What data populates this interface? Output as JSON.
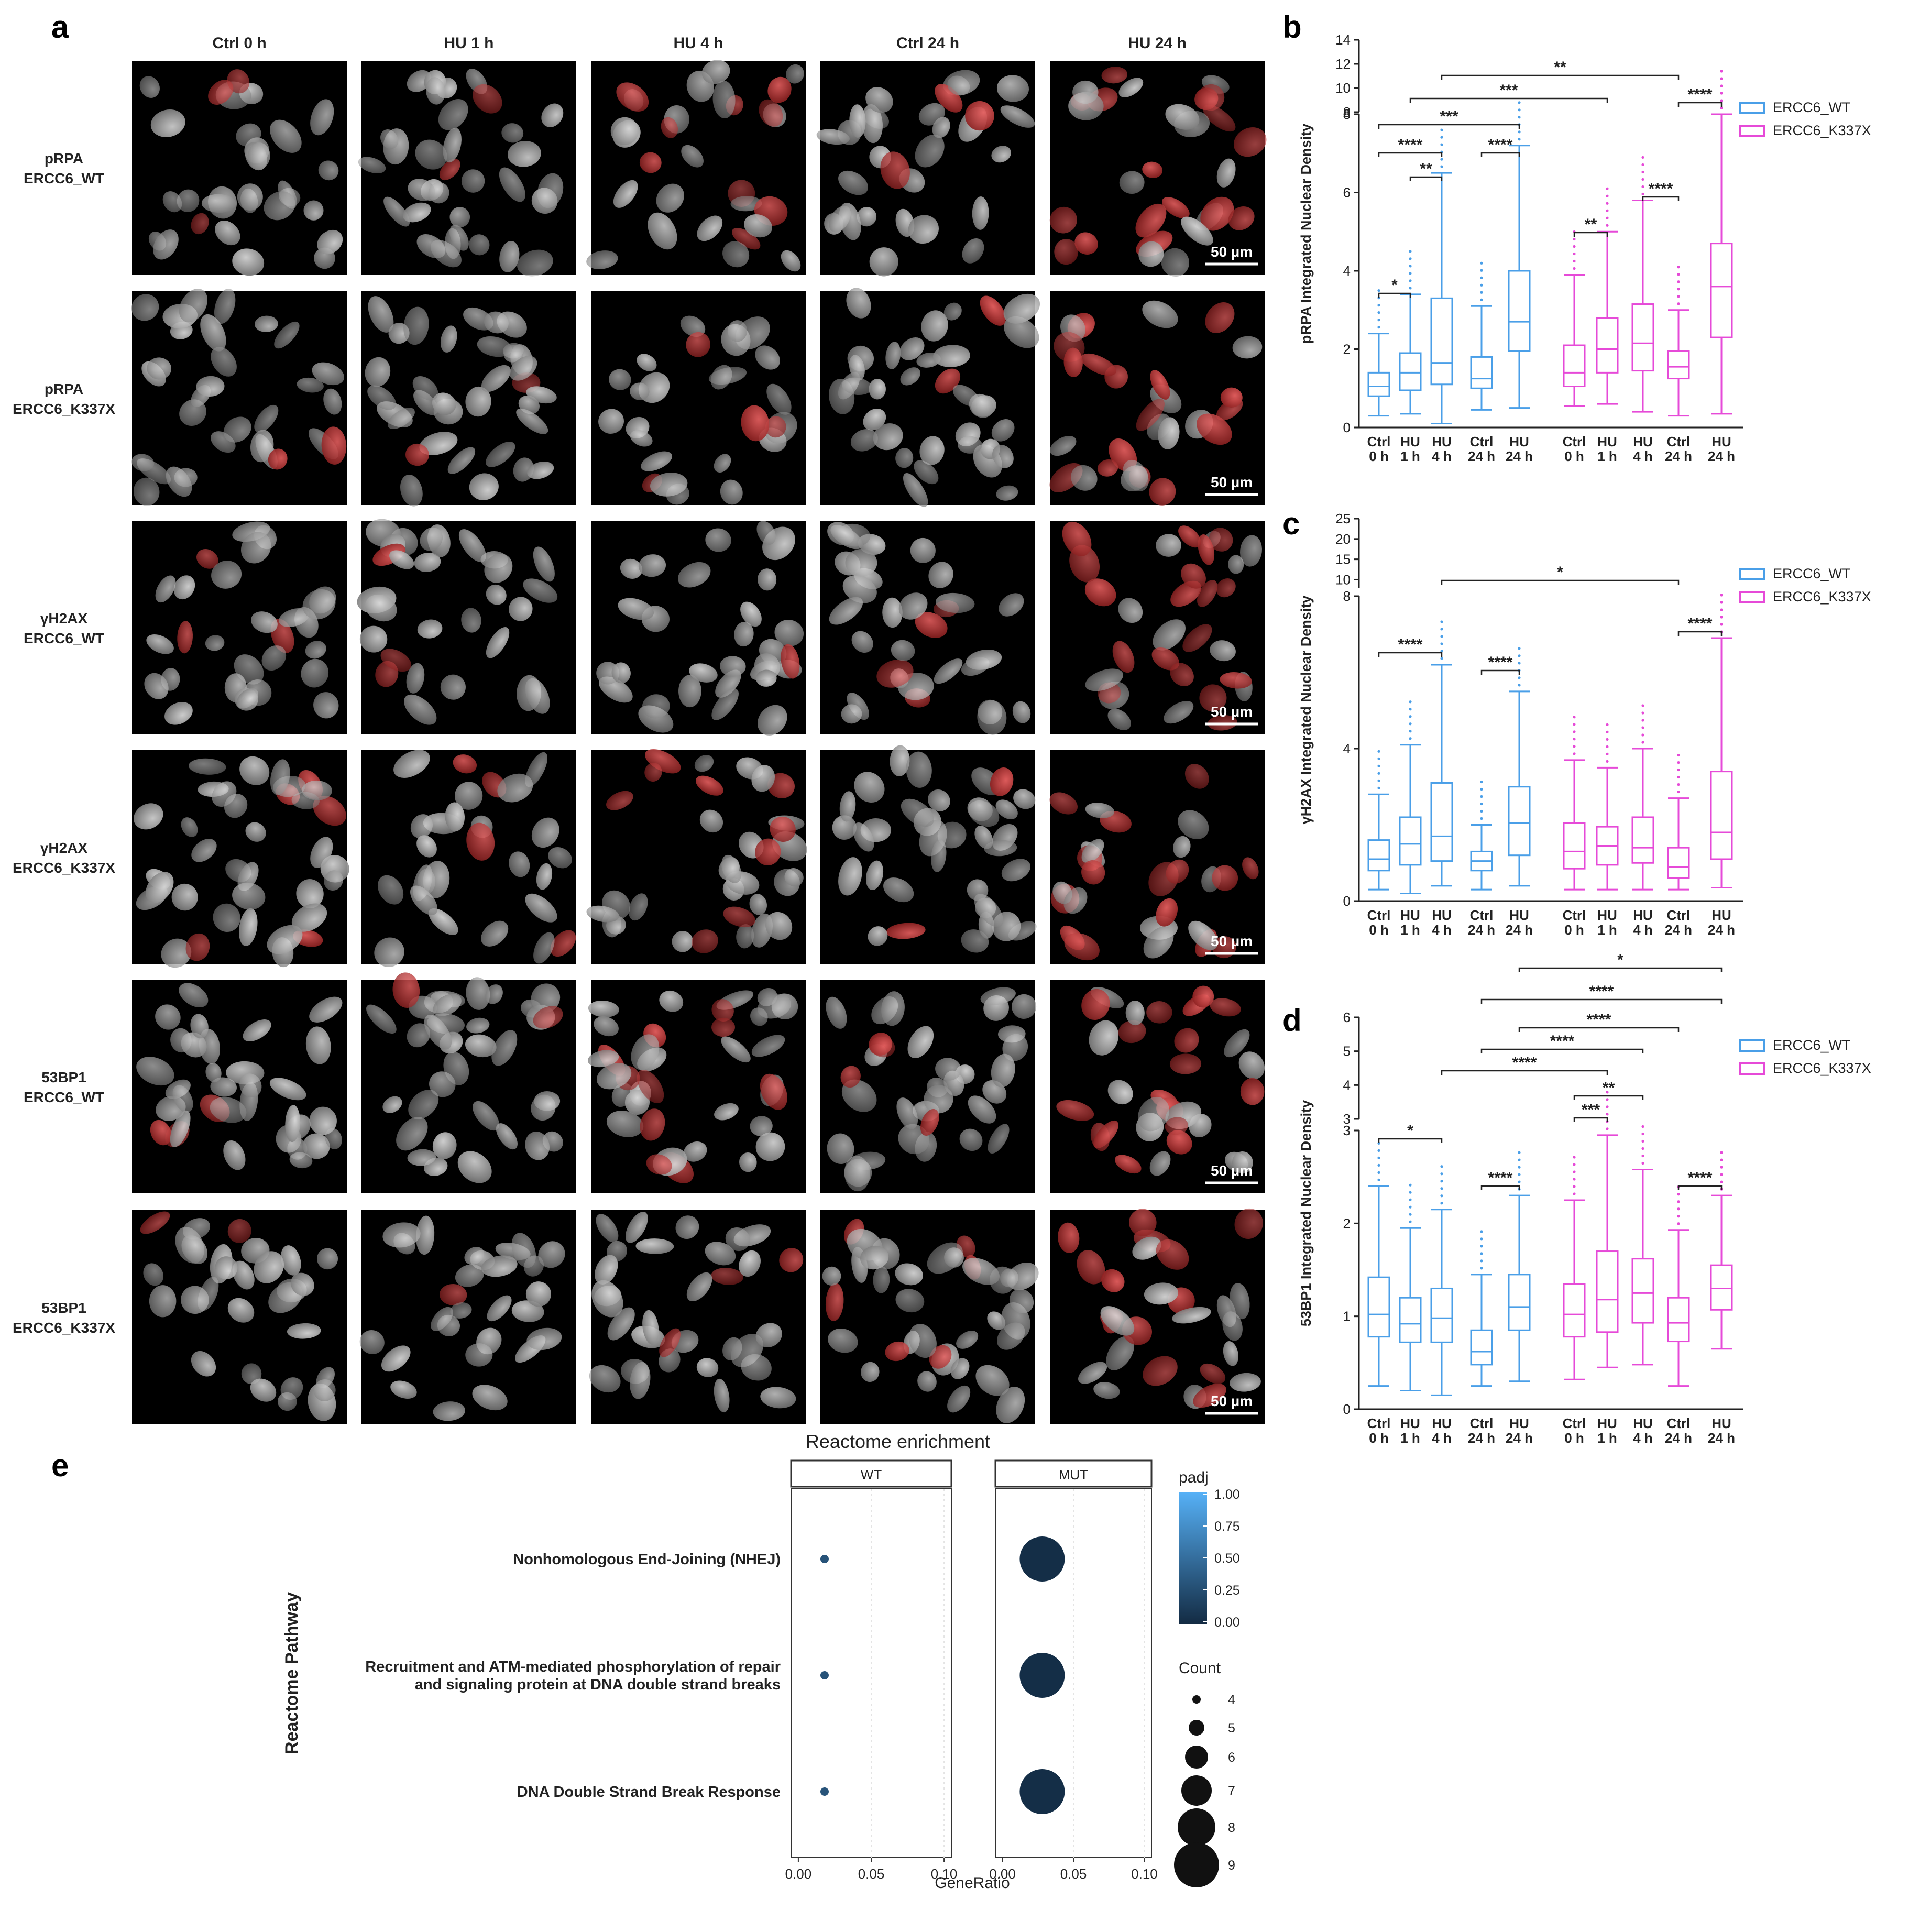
{
  "panel_letters": {
    "a": "a",
    "b": "b",
    "c": "c",
    "d": "d",
    "e": "e"
  },
  "microscopy": {
    "columns": [
      "Ctrl 0 h",
      "HU 1 h",
      "HU 4 h",
      "Ctrl 24 h",
      "HU 24 h"
    ],
    "rows": [
      {
        "marker": "pRPA",
        "genotype": "ERCC6_WT",
        "color": "#e23b3b"
      },
      {
        "marker": "pRPA",
        "genotype": "ERCC6_K337X",
        "color": "#e23b3b"
      },
      {
        "marker": "γH2AX",
        "genotype": "ERCC6_WT",
        "color": "#e23b3b"
      },
      {
        "marker": "γH2AX",
        "genotype": "ERCC6_K337X",
        "color": "#e23b3b"
      },
      {
        "marker": "53BP1",
        "genotype": "ERCC6_WT",
        "color": "#e23b3b"
      },
      {
        "marker": "53BP1",
        "genotype": "ERCC6_K337X",
        "color": "#e23b3b"
      }
    ],
    "scale_bar": "50 µm"
  },
  "box_legend": {
    "wt": "ERCC6_WT",
    "mut": "ERCC6_K337X",
    "wt_color": "#4a9fe8",
    "mut_color": "#e64ad8"
  },
  "chart_data": [
    {
      "id": "b",
      "type": "box",
      "ylabel": "pRPA Integrated Nuclear Density",
      "categories": [
        "Ctrl\n0 h",
        "HU\n1 h",
        "HU\n4 h",
        "Ctrl\n24 h",
        "HU\n24 h"
      ],
      "y_lower_ticks": [
        0,
        2,
        4,
        6,
        8
      ],
      "y_upper_ticks": [
        8,
        10,
        12,
        14
      ],
      "series": [
        {
          "name": "ERCC6_WT",
          "boxes": [
            [
              0.3,
              0.8,
              1.05,
              1.4,
              2.4
            ],
            [
              0.35,
              0.95,
              1.4,
              1.9,
              3.4
            ],
            [
              0.1,
              1.1,
              1.65,
              3.3,
              6.5
            ],
            [
              0.45,
              1.0,
              1.25,
              1.8,
              3.1
            ],
            [
              0.5,
              1.95,
              2.7,
              4.0,
              7.2
            ]
          ]
        },
        {
          "name": "ERCC6_K337X",
          "boxes": [
            [
              0.55,
              1.05,
              1.4,
              2.1,
              3.9
            ],
            [
              0.6,
              1.4,
              2.0,
              2.8,
              5.0
            ],
            [
              0.4,
              1.45,
              2.15,
              3.15,
              5.8
            ],
            [
              0.3,
              1.25,
              1.55,
              1.95,
              3.0
            ],
            [
              0.35,
              2.3,
              3.6,
              4.7,
              8.0
            ]
          ]
        }
      ],
      "significance": [
        "*",
        "**",
        "****",
        "***",
        "****",
        "**",
        "***",
        "**",
        "****",
        "****"
      ]
    },
    {
      "id": "c",
      "type": "box",
      "ylabel": "γH2AX Integrated Nuclear Density",
      "categories": [
        "Ctrl\n0 h",
        "HU\n1 h",
        "HU\n4 h",
        "Ctrl\n24 h",
        "HU\n24 h"
      ],
      "y_lower_ticks": [
        0,
        4,
        8
      ],
      "y_upper_ticks": [
        10,
        15,
        20,
        25
      ],
      "series": [
        {
          "name": "ERCC6_WT",
          "boxes": [
            [
              0.3,
              0.8,
              1.1,
              1.6,
              2.8
            ],
            [
              0.2,
              0.95,
              1.5,
              2.2,
              4.1
            ],
            [
              0.4,
              1.05,
              1.7,
              3.1,
              6.2
            ],
            [
              0.3,
              0.8,
              1.05,
              1.3,
              2.0
            ],
            [
              0.4,
              1.2,
              2.05,
              3.0,
              5.5
            ]
          ]
        },
        {
          "name": "ERCC6_K337X",
          "boxes": [
            [
              0.3,
              0.85,
              1.3,
              2.05,
              3.7
            ],
            [
              0.3,
              0.95,
              1.45,
              1.95,
              3.5
            ],
            [
              0.3,
              1.0,
              1.4,
              2.2,
              4.0
            ],
            [
              0.3,
              0.6,
              0.9,
              1.4,
              2.7
            ],
            [
              0.35,
              1.1,
              1.8,
              3.4,
              6.9
            ]
          ]
        }
      ],
      "significance": [
        "****",
        "****",
        "*",
        "****"
      ]
    },
    {
      "id": "d",
      "type": "box",
      "ylabel": "53BP1 Integrated Nuclear Density",
      "categories": [
        "Ctrl\n0 h",
        "HU\n1 h",
        "HU\n4 h",
        "Ctrl\n24 h",
        "HU\n24 h"
      ],
      "y_lower_ticks": [
        0,
        1,
        2,
        3
      ],
      "y_upper_ticks": [
        3,
        4,
        5,
        6
      ],
      "series": [
        {
          "name": "ERCC6_WT",
          "boxes": [
            [
              0.25,
              0.78,
              1.02,
              1.42,
              2.4
            ],
            [
              0.2,
              0.72,
              0.92,
              1.2,
              1.95
            ],
            [
              0.15,
              0.72,
              0.98,
              1.3,
              2.15
            ],
            [
              0.25,
              0.48,
              0.62,
              0.85,
              1.45
            ],
            [
              0.3,
              0.85,
              1.1,
              1.45,
              2.3
            ]
          ]
        },
        {
          "name": "ERCC6_K337X",
          "boxes": [
            [
              0.32,
              0.78,
              1.02,
              1.35,
              2.25
            ],
            [
              0.45,
              0.83,
              1.18,
              1.7,
              2.95
            ],
            [
              0.48,
              0.93,
              1.25,
              1.62,
              2.58
            ],
            [
              0.25,
              0.73,
              0.93,
              1.2,
              1.93
            ],
            [
              0.65,
              1.07,
              1.3,
              1.55,
              2.3
            ]
          ]
        }
      ],
      "significance": [
        "*",
        "****",
        "****",
        "****",
        "****",
        "*",
        "***",
        "**",
        "****",
        "****"
      ]
    },
    {
      "id": "e",
      "type": "scatter",
      "title": "Reactome enrichment",
      "xlabel": "GeneRatio",
      "ylabel": "Reactome Pathway",
      "facets": [
        "WT",
        "MUT"
      ],
      "pathways": [
        "Nonhomologous End-Joining (NHEJ)",
        "Recruitment and ATM-mediated phosphorylation of repair\nand signaling protein at DNA double strand breaks",
        "DNA Double Strand Break Response"
      ],
      "x_ticks": [
        "0.00",
        "0.05",
        "0.10"
      ],
      "xlim": [
        -0.005,
        0.105
      ],
      "points": [
        {
          "facet": "WT",
          "pathway": 0,
          "x": 0.018,
          "count": 4,
          "padj": 0.3
        },
        {
          "facet": "WT",
          "pathway": 1,
          "x": 0.018,
          "count": 4,
          "padj": 0.3
        },
        {
          "facet": "WT",
          "pathway": 2,
          "x": 0.018,
          "count": 4,
          "padj": 0.3
        },
        {
          "facet": "MUT",
          "pathway": 0,
          "x": 0.028,
          "count": 9,
          "padj": 0.02
        },
        {
          "facet": "MUT",
          "pathway": 1,
          "x": 0.028,
          "count": 9,
          "padj": 0.02
        },
        {
          "facet": "MUT",
          "pathway": 2,
          "x": 0.028,
          "count": 9,
          "padj": 0.02
        }
      ],
      "legend_padj": {
        "title": "padj",
        "ticks": [
          "1.00",
          "0.75",
          "0.50",
          "0.25",
          "0.00"
        ]
      },
      "legend_count": {
        "title": "Count",
        "values": [
          "4",
          "5",
          "6",
          "7",
          "8",
          "9"
        ]
      }
    }
  ]
}
